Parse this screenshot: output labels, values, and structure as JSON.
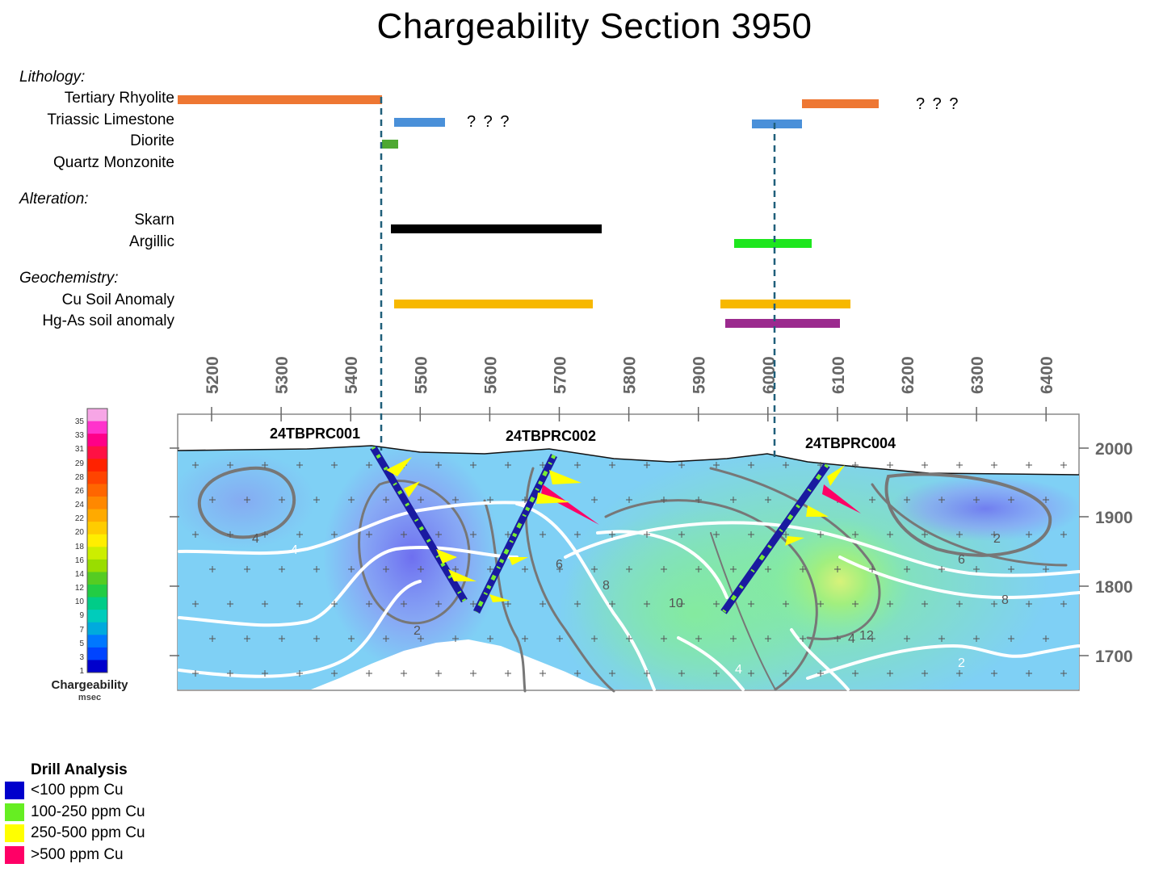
{
  "title": "Chargeability Section 3950",
  "lithology": {
    "heading": "Lithology:",
    "rows": [
      {
        "label": "Tertiary Rhyolite",
        "color": "#ee7733"
      },
      {
        "label": "Triassic Limestone",
        "color": "#4a90d9"
      },
      {
        "label": "Diorite",
        "color": "#4ea832"
      },
      {
        "label": "Quartz Monzonite",
        "color": "#999999"
      }
    ]
  },
  "alteration": {
    "heading": "Alteration:",
    "rows": [
      {
        "label": "Skarn",
        "color": "#000000"
      },
      {
        "label": "Argillic",
        "color": "#1ee61e"
      }
    ]
  },
  "geochemistry": {
    "heading": "Geochemistry:",
    "rows": [
      {
        "label": "Cu Soil Anomaly",
        "color": "#f7b800"
      },
      {
        "label": "Hg-As soil anomaly",
        "color": "#9b2a8e"
      }
    ]
  },
  "uncertain_marks": [
    "? ? ?",
    "? ? ?"
  ],
  "section": {
    "x_ticks": [
      "5200",
      "5300",
      "5400",
      "5500",
      "5600",
      "5700",
      "5800",
      "5900",
      "6000",
      "6100",
      "6200",
      "6300",
      "6400"
    ],
    "elevation_ticks": [
      "2000",
      "1900",
      "1800",
      "1700"
    ],
    "drill_holes": [
      "24TBPRC001",
      "24TBPRC002",
      "24TBPRC004"
    ],
    "contour_labels": [
      "4",
      "4",
      "2",
      "6",
      "8",
      "10",
      "4",
      "12",
      "8",
      "6",
      "2",
      "2",
      "4"
    ]
  },
  "chargeability_scale": {
    "title": "Chargeability",
    "unit": "msec",
    "ticks": [
      "35",
      "33",
      "31",
      "29",
      "28",
      "26",
      "24",
      "22",
      "20",
      "18",
      "16",
      "14",
      "12",
      "10",
      "9",
      "7",
      "5",
      "3",
      "1"
    ],
    "colors": [
      "#f7a6e6",
      "#ff33cc",
      "#ff0088",
      "#ff1144",
      "#ff2200",
      "#ff4400",
      "#ff6600",
      "#ff8800",
      "#ffaa00",
      "#ffcc00",
      "#ffee00",
      "#ccee00",
      "#99dd00",
      "#55cc22",
      "#22cc44",
      "#00cc88",
      "#00ccbb",
      "#00aadd",
      "#0077ff",
      "#0044ff",
      "#0000cc"
    ]
  },
  "drill_legend": {
    "title": "Drill Analysis",
    "items": [
      {
        "label": "<100 ppm Cu",
        "color": "#0000cc"
      },
      {
        "label": "100-250 ppm Cu",
        "color": "#66ee22"
      },
      {
        "label": "250-500 ppm Cu",
        "color": "#ffff00"
      },
      {
        "label": ">500 ppm Cu",
        "color": "#ff0066"
      }
    ]
  },
  "colors": {
    "ref_line": "#1f5f7a",
    "contour_white": "#ffffff",
    "contour_grey": "#777777",
    "field_blue": "#7fd0f5",
    "field_low": "#8f9ff5",
    "field_mid": "#7de6c8",
    "field_high": "#8af07a"
  }
}
